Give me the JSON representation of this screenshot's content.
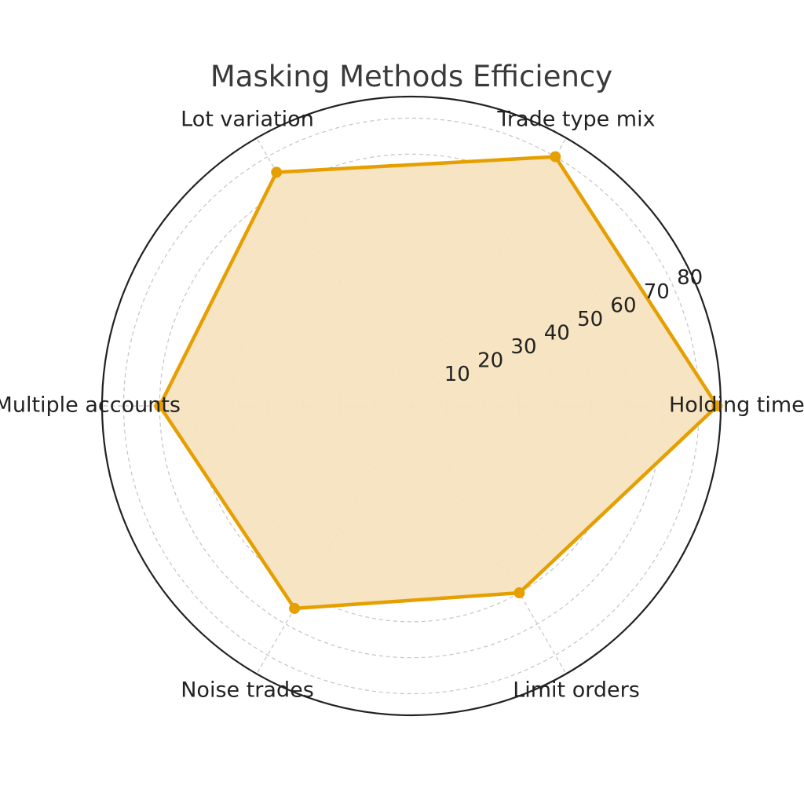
{
  "chart_data": {
    "type": "radar",
    "title": "Masking Methods Efficiency",
    "categories": [
      "Holding time",
      "Trade type mix",
      "Lot variation",
      "Multiple accounts",
      "Noise trades",
      "Limit orders"
    ],
    "series": [
      {
        "values": [
          85,
          80,
          75,
          70,
          65,
          60
        ]
      }
    ],
    "rlim": [
      0,
      86
    ],
    "radial_ticks": [
      10,
      20,
      30,
      40,
      50,
      60,
      70,
      80
    ],
    "grid": true,
    "colors": {
      "line": "#e69f00",
      "fill": "#f5e3bf",
      "grid": "#c4c4c4",
      "frame": "#222222"
    }
  }
}
